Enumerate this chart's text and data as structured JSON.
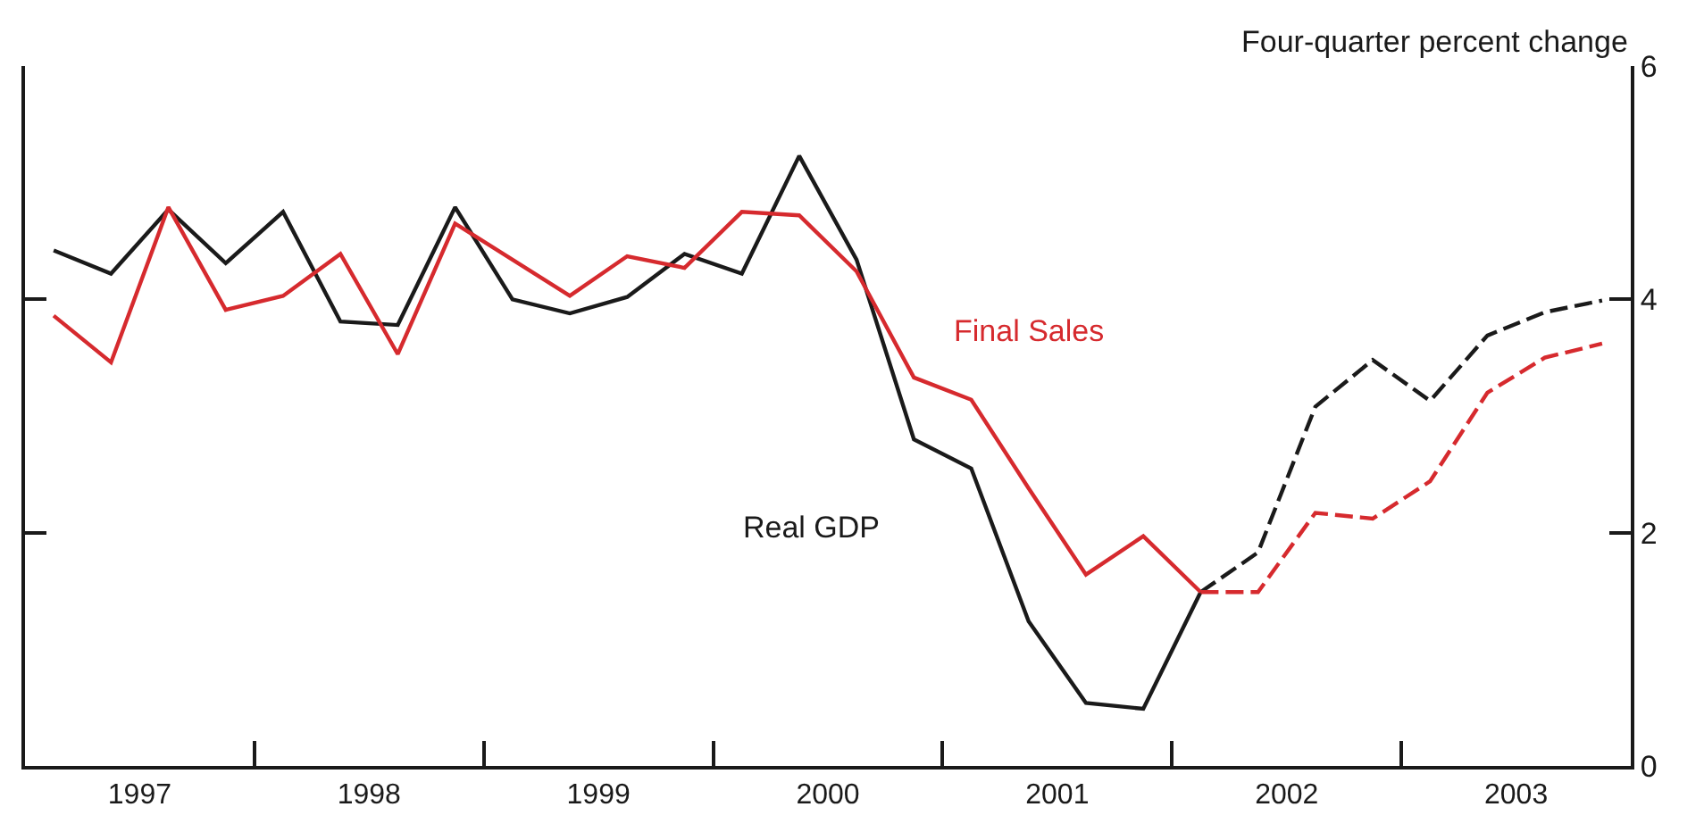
{
  "chart_data": {
    "type": "line",
    "ylabel": "Four-quarter percent change",
    "x": [
      1997.125,
      1997.375,
      1997.625,
      1997.875,
      1998.125,
      1998.375,
      1998.625,
      1998.875,
      1999.125,
      1999.375,
      1999.625,
      1999.875,
      2000.125,
      2000.375,
      2000.625,
      2000.875,
      2001.125,
      2001.375,
      2001.625,
      2001.875,
      2002.125,
      2002.375,
      2002.625,
      2002.875,
      2003.125,
      2003.375,
      2003.625,
      2003.875
    ],
    "series": [
      {
        "name": "Real GDP",
        "color": "#1a1a1a",
        "line_style": "solid",
        "values": [
          4.42,
          4.22,
          4.77,
          4.31,
          4.75,
          3.81,
          3.78,
          4.79,
          4.0,
          3.88,
          4.02,
          4.39,
          4.22,
          5.23,
          4.34,
          2.8,
          2.55,
          1.24,
          0.54,
          0.49,
          1.49,
          null,
          null,
          null,
          null,
          null,
          null,
          null
        ]
      },
      {
        "color": "#1a1a1a",
        "line_style": "dashed",
        "values": [
          null,
          null,
          null,
          null,
          null,
          null,
          null,
          null,
          null,
          null,
          null,
          null,
          null,
          null,
          null,
          null,
          null,
          null,
          null,
          null,
          1.49,
          1.83,
          3.08,
          3.48,
          3.13,
          3.69,
          3.89,
          3.99
        ]
      },
      {
        "name": "Final Sales",
        "color": "#d62a2e",
        "line_style": "solid",
        "values": [
          3.86,
          3.46,
          4.79,
          3.91,
          4.03,
          4.39,
          3.53,
          4.65,
          4.34,
          4.03,
          4.37,
          4.27,
          4.75,
          4.72,
          4.24,
          3.33,
          3.14,
          2.38,
          1.64,
          1.97,
          1.49,
          null,
          null,
          null,
          null,
          null,
          null,
          null
        ]
      },
      {
        "color": "#d62a2e",
        "line_style": "dashed",
        "values": [
          null,
          null,
          null,
          null,
          null,
          null,
          null,
          null,
          null,
          null,
          null,
          null,
          null,
          null,
          null,
          null,
          null,
          null,
          null,
          null,
          1.49,
          1.49,
          2.17,
          2.12,
          2.44,
          3.2,
          3.5,
          3.62
        ]
      }
    ],
    "xlim": [
      1997,
      2004
    ],
    "xticks": [
      {
        "value": 1997.5,
        "label": "1997"
      },
      {
        "value": 1998,
        "label": null
      },
      {
        "value": 1998.5,
        "label": "1998"
      },
      {
        "value": 1999,
        "label": null
      },
      {
        "value": 1999.5,
        "label": "1999"
      },
      {
        "value": 2000,
        "label": null
      },
      {
        "value": 2000.5,
        "label": "2000"
      },
      {
        "value": 2001,
        "label": null
      },
      {
        "value": 2001.5,
        "label": "2001"
      },
      {
        "value": 2002,
        "label": null
      },
      {
        "value": 2002.5,
        "label": "2002"
      },
      {
        "value": 2003,
        "label": null
      },
      {
        "value": 2003.5,
        "label": "2003"
      }
    ],
    "ylim": [
      0,
      6
    ],
    "yticks": [
      0,
      2,
      4,
      6
    ],
    "legend": false
  }
}
